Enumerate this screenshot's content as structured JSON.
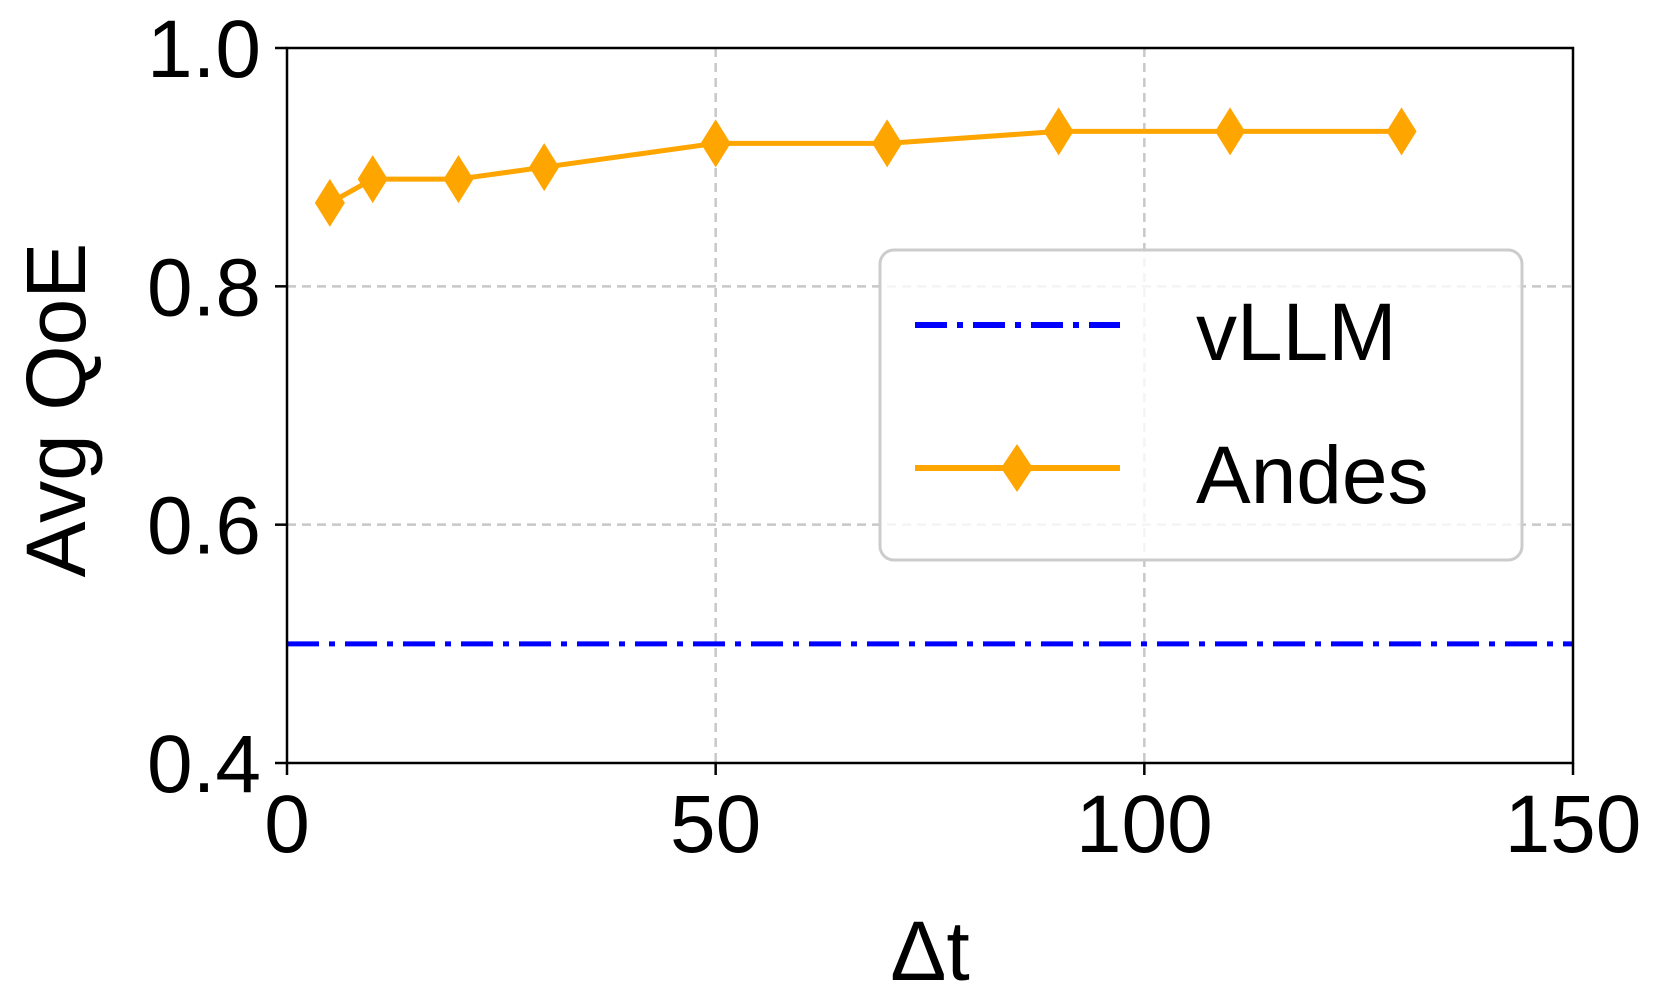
{
  "chart_data": {
    "type": "line",
    "title": "",
    "xlabel": "Δt",
    "ylabel": "Avg QoE",
    "xlim": [
      0,
      150
    ],
    "ylim": [
      0.4,
      1.0
    ],
    "xticks": [
      "0",
      "50",
      "100",
      "150"
    ],
    "yticks": [
      "0.4",
      "0.6",
      "0.8",
      "1.0"
    ],
    "grid": true,
    "legend_position": "center-right",
    "series": [
      {
        "name": "vLLM",
        "style": "dash-dot",
        "marker": "none",
        "color": "#0000ff",
        "x": [
          0,
          150
        ],
        "y": [
          0.5,
          0.5
        ]
      },
      {
        "name": "Andes",
        "style": "solid",
        "marker": "diamond",
        "color": "#ffa500",
        "x": [
          5,
          10,
          20,
          30,
          50,
          70,
          90,
          110,
          130
        ],
        "y": [
          0.87,
          0.89,
          0.89,
          0.9,
          0.92,
          0.92,
          0.93,
          0.93,
          0.93
        ]
      }
    ]
  }
}
